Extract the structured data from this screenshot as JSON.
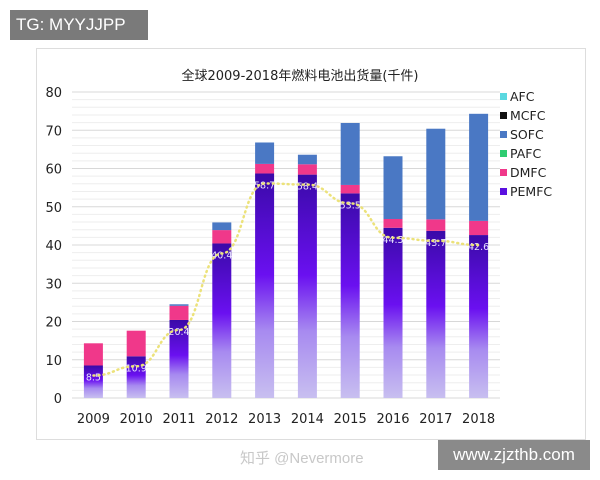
{
  "watermarks": {
    "tg": "TG: MYYJJPP",
    "site": "www.zjzthb.com",
    "zhihu": "知乎 @Nevermore"
  },
  "chart_data": {
    "type": "bar",
    "stacked": true,
    "title": "全球2009-2018年燃料电池出货量(千件)",
    "xlabel": "",
    "ylabel": "",
    "ylim": [
      0,
      80
    ],
    "yticks": [
      0,
      10,
      20,
      30,
      40,
      50,
      60,
      70,
      80
    ],
    "grid": true,
    "legend_placement": "right",
    "categories": [
      "2009",
      "2010",
      "2011",
      "2012",
      "2013",
      "2014",
      "2015",
      "2016",
      "2017",
      "2018"
    ],
    "series": [
      {
        "name": "PEMFC",
        "color": "#5a10e0",
        "values": [
          8.5,
          10.9,
          20.4,
          40.4,
          58.7,
          58.4,
          53.5,
          44.5,
          43.7,
          42.6
        ],
        "labels": [
          "8.5",
          "10.9",
          "20.4",
          "40.4",
          "58.7",
          "58.4",
          "53.5",
          "44.5",
          "43.7",
          "42.6"
        ]
      },
      {
        "name": "DMFC",
        "color": "#f0388a",
        "values": [
          5.8,
          6.7,
          3.7,
          3.5,
          2.5,
          2.7,
          2.2,
          2.3,
          3.0,
          3.7
        ]
      },
      {
        "name": "PAFC",
        "color": "#2ecc71",
        "values": [
          0,
          0,
          0,
          0,
          0,
          0,
          0,
          0,
          0,
          0
        ]
      },
      {
        "name": "SOFC",
        "color": "#4a78c4",
        "values": [
          0,
          0,
          0.4,
          2.0,
          5.6,
          2.5,
          16.2,
          16.4,
          23.7,
          28.0
        ]
      },
      {
        "name": "MCFC",
        "color": "#111111",
        "values": [
          0,
          0,
          0,
          0,
          0,
          0,
          0,
          0,
          0,
          0
        ]
      },
      {
        "name": "AFC",
        "color": "#5ad8e0",
        "values": [
          0,
          0,
          0,
          0,
          0,
          0,
          0,
          0,
          0,
          0
        ]
      }
    ],
    "trendline": {
      "series": "PEMFC",
      "style": "dotted",
      "color": "#ece27a"
    }
  }
}
